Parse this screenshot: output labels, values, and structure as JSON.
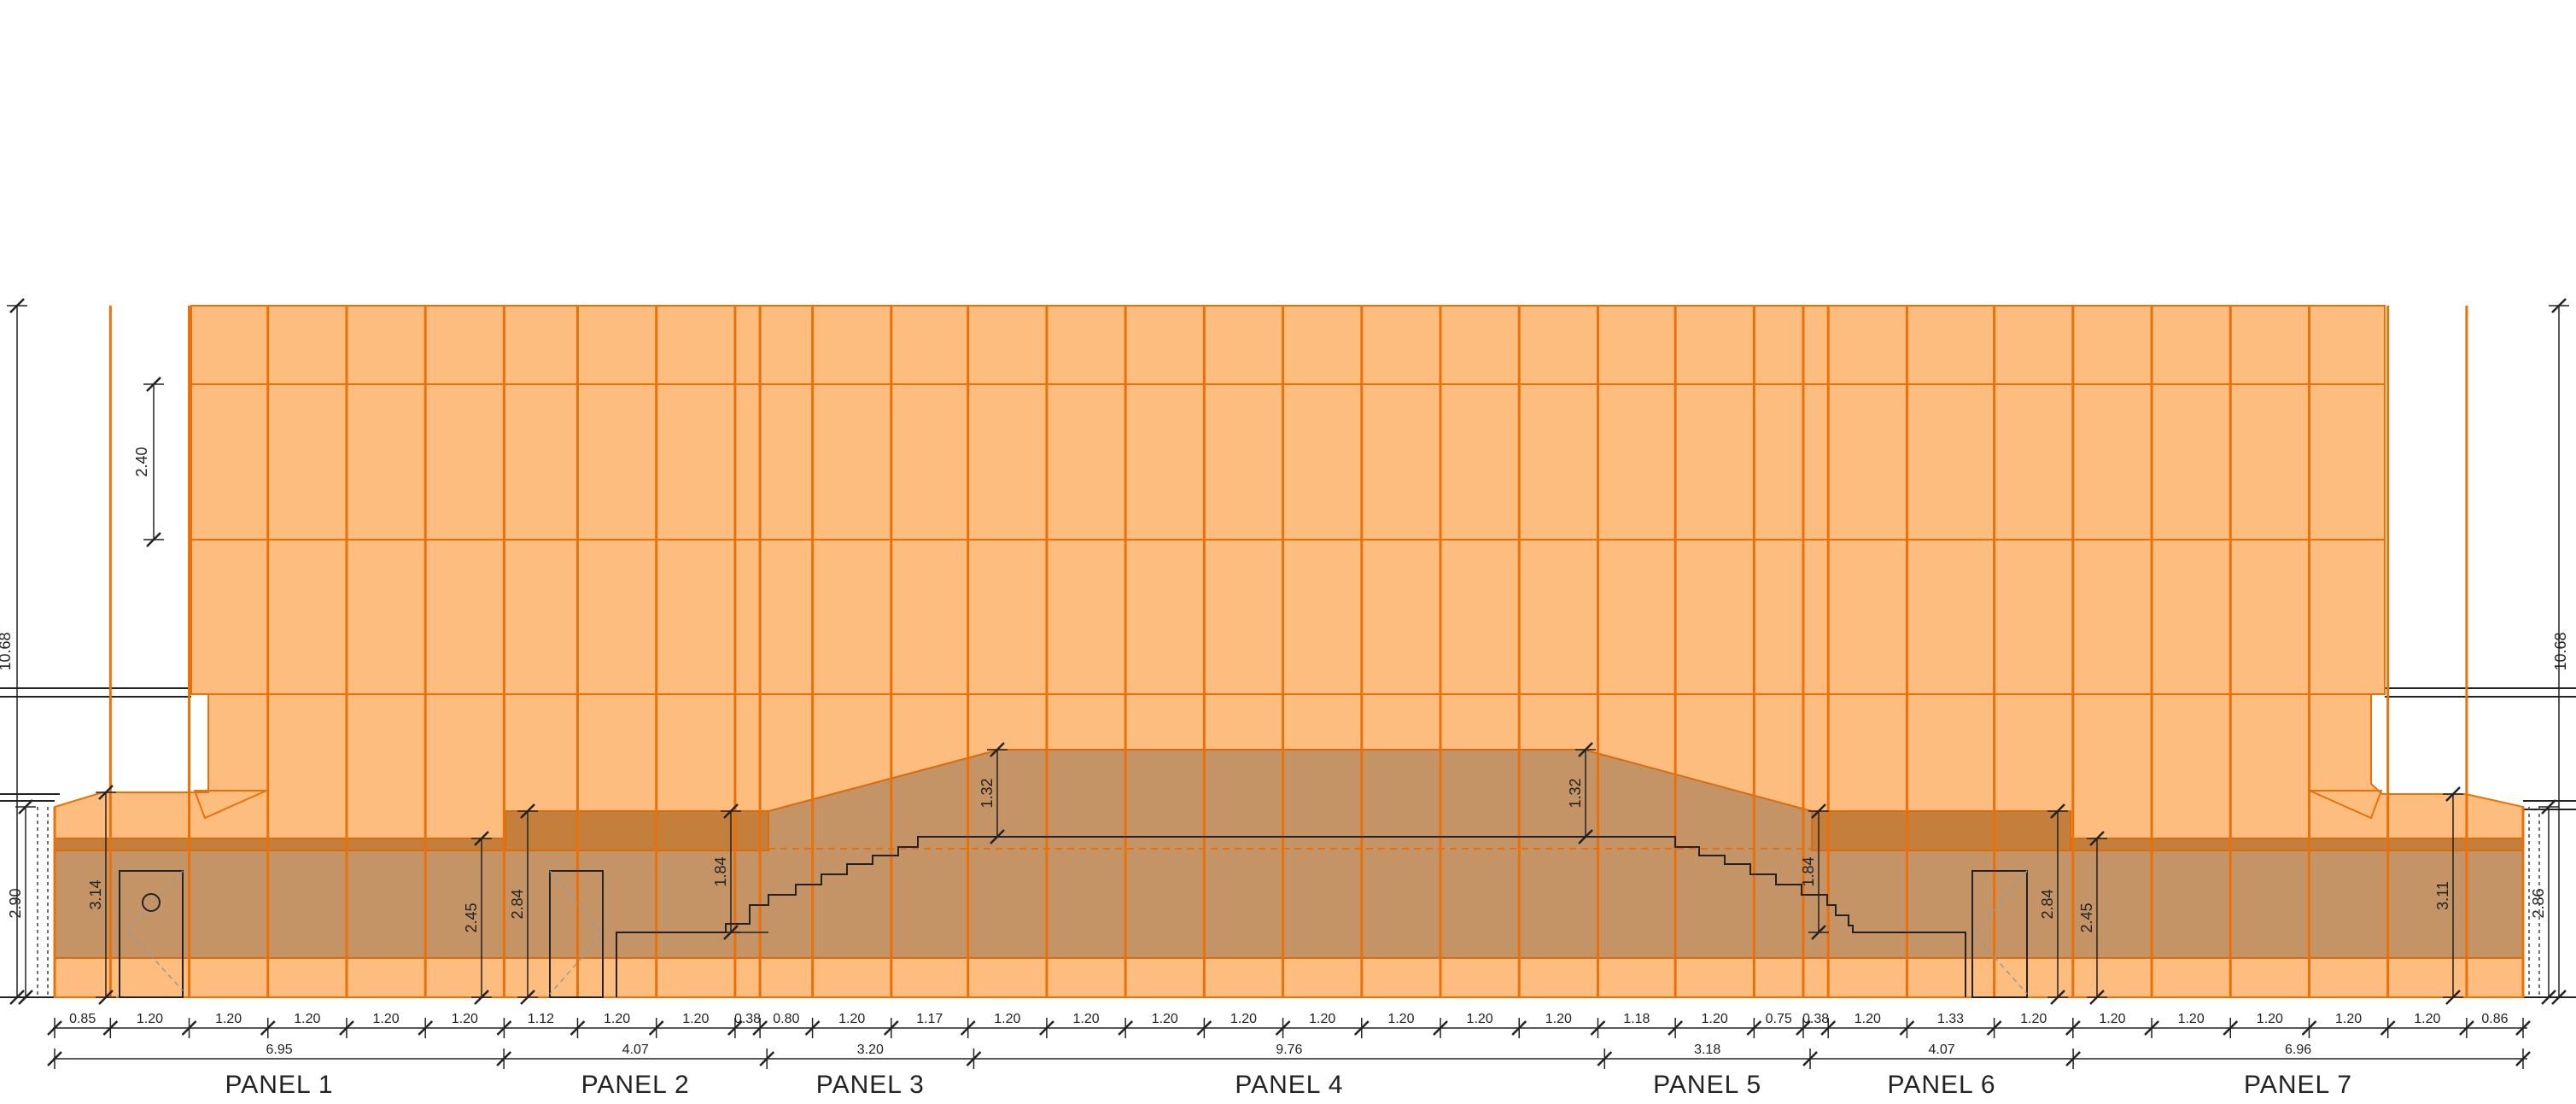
{
  "colors": {
    "facade_panel": "#fdbd7e",
    "mullion": "#e8710a",
    "mullion_dark": "#d96b10",
    "base_band": "#c59466",
    "dark_band": "#c47f3c",
    "line": "#222222"
  },
  "overall_height": {
    "left": "10.68",
    "right": "10.68"
  },
  "cladding_module_height": "2.40",
  "bottom_dimensions": [
    "0.85",
    "1.20",
    "1.20",
    "1.20",
    "1.20",
    "1.20",
    "1.12",
    "1.20",
    "1.20",
    "0.38",
    "0.80",
    "1.20",
    "1.17",
    "1.20",
    "1.20",
    "1.20",
    "1.20",
    "1.20",
    "1.20",
    "1.20",
    "1.20",
    "1.18",
    "1.20",
    "0.75",
    "0.38",
    "1.20",
    "1.33",
    "1.20",
    "1.20",
    "1.20",
    "1.20",
    "1.20",
    "1.20",
    "0.86"
  ],
  "panels": [
    {
      "label": "PANEL 1",
      "width": "6.95"
    },
    {
      "label": "PANEL 2",
      "width": "4.07"
    },
    {
      "label": "PANEL 3",
      "width": "3.20"
    },
    {
      "label": "PANEL 4",
      "width": "9.76"
    },
    {
      "label": "PANEL 5",
      "width": "3.18"
    },
    {
      "label": "PANEL 6",
      "width": "4.07"
    },
    {
      "label": "PANEL 7",
      "width": "6.96"
    }
  ],
  "vertical_dimensions": {
    "far_left": "2.90",
    "left_inner": "3.14",
    "left_mid_a": "2.45",
    "left_mid_b": "2.84",
    "left_step": "1.84",
    "left_slope": "1.32",
    "right_slope": "1.32",
    "right_step": "1.84",
    "right_mid_b": "2.84",
    "right_mid_a": "2.45",
    "right_inner": "3.11",
    "far_right": "2.86"
  }
}
